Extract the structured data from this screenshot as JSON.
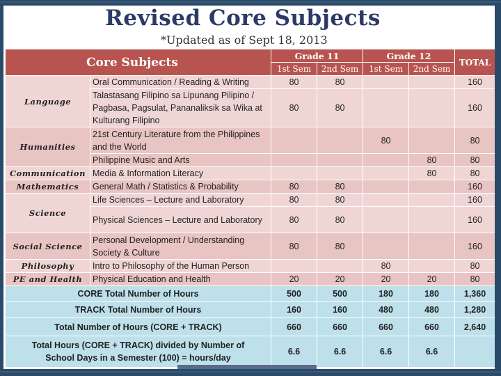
{
  "title": "Revised Core Subjects",
  "subtitle": "*Updated as of Sept 18, 2013",
  "header": {
    "core": "Core Subjects",
    "grade11": "Grade 11",
    "grade12": "Grade 12",
    "total": "TOTAL",
    "sem1": "1st Sem",
    "sem2": "2nd Sem",
    "sem3": "1st Sem",
    "sem4": "2nd Sem"
  },
  "categories": {
    "language": "Language",
    "humanities": "Humanities",
    "communication": "Communication",
    "mathematics": "Mathematics",
    "science": "Science",
    "social": "Social Science",
    "philosophy": "Philosophy",
    "pe": "PE and Health"
  },
  "rows": [
    {
      "subject": "Oral Communication / Reading & Writing",
      "s1": "80",
      "s2": "80",
      "s3": "",
      "s4": "",
      "total": "160"
    },
    {
      "subject": "Talastasang Filipino sa Lipunang Pilipino / Pagbasa, Pagsulat, Pananaliksik sa Wika at Kulturang Filipino",
      "s1": "80",
      "s2": "80",
      "s3": "",
      "s4": "",
      "total": "160"
    },
    {
      "subject": "21st Century Literature from the Philippines and the World",
      "s1": "",
      "s2": "",
      "s3": "80",
      "s4": "",
      "total": "80"
    },
    {
      "subject": "Philippine Music and Arts",
      "s1": "",
      "s2": "",
      "s3": "",
      "s4": "80",
      "total": "80"
    },
    {
      "subject": "Media & Information Literacy",
      "s1": "",
      "s2": "",
      "s3": "",
      "s4": "80",
      "total": "80"
    },
    {
      "subject": "General Math / Statistics & Probability",
      "s1": "80",
      "s2": "80",
      "s3": "",
      "s4": "",
      "total": "160"
    },
    {
      "subject": "Life Sciences – Lecture and Laboratory",
      "s1": "80",
      "s2": "80",
      "s3": "",
      "s4": "",
      "total": "160"
    },
    {
      "subject": "Physical Sciences – Lecture and Laboratory",
      "s1": "80",
      "s2": "80",
      "s3": "",
      "s4": "",
      "total": "160"
    },
    {
      "subject": "Personal Development / Understanding Society & Culture",
      "s1": "80",
      "s2": "80",
      "s3": "",
      "s4": "",
      "total": "160"
    },
    {
      "subject": "Intro to Philosophy of the Human Person",
      "s1": "",
      "s2": "",
      "s3": "80",
      "s4": "",
      "total": "80"
    },
    {
      "subject": "Physical Education and Health",
      "s1": "20",
      "s2": "20",
      "s3": "20",
      "s4": "20",
      "total": "80"
    }
  ],
  "summary": [
    {
      "label": "CORE Total Number of Hours",
      "s1": "500",
      "s2": "500",
      "s3": "180",
      "s4": "180",
      "total": "1,360"
    },
    {
      "label": "TRACK Total Number of Hours",
      "s1": "160",
      "s2": "160",
      "s3": "480",
      "s4": "480",
      "total": "1,280"
    },
    {
      "label": "Total Number of Hours (CORE + TRACK)",
      "s1": "660",
      "s2": "660",
      "s3": "660",
      "s4": "660",
      "total": "2,640"
    },
    {
      "label": "Total Hours (CORE + TRACK) divided by Number of School Days in a Semester (100) = hours/day",
      "s1": "6.6",
      "s2": "6.6",
      "s3": "6.6",
      "s4": "6.6",
      "total": ""
    }
  ]
}
